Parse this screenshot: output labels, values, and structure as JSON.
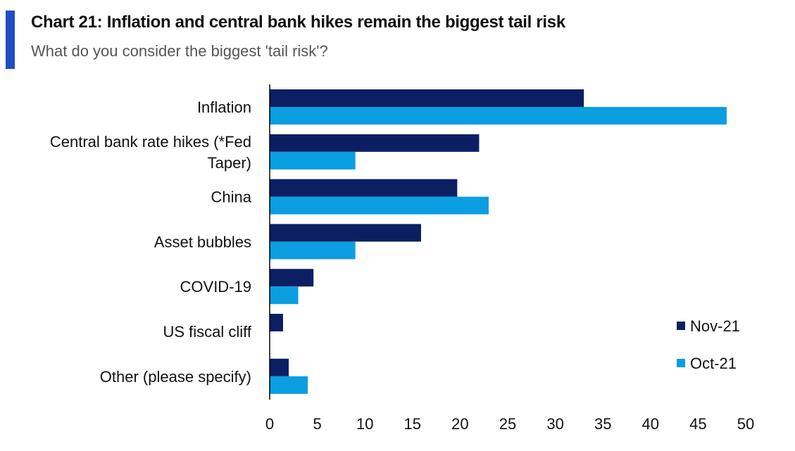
{
  "header": {
    "title": "Chart 21: Inflation and central bank hikes remain the biggest tail risk",
    "subtitle": "What do you consider the biggest 'tail risk'?"
  },
  "colors": {
    "accent": "#1f4fc4",
    "nov": "#0c1f63",
    "oct": "#0b9ee0",
    "axis": "#000000"
  },
  "chart_data": {
    "type": "bar",
    "orientation": "horizontal",
    "title": "Chart 21: Inflation and central bank hikes remain the biggest tail risk",
    "subtitle": "What do you consider the biggest 'tail risk'?",
    "categories": [
      [
        "Inflation"
      ],
      [
        "Central bank rate hikes (*Fed",
        "Taper)"
      ],
      [
        "China"
      ],
      [
        "Asset bubbles"
      ],
      [
        "COVID-19"
      ],
      [
        "US fiscal cliff"
      ],
      [
        "Other (please specify)"
      ]
    ],
    "series": [
      {
        "name": "Nov-21",
        "color": "#0c1f63",
        "values": [
          33,
          22,
          19.7,
          15.9,
          4.6,
          1.4,
          2
        ]
      },
      {
        "name": "Oct-21",
        "color": "#0b9ee0",
        "values": [
          48,
          9,
          23,
          9,
          3,
          0,
          4
        ]
      }
    ],
    "xlim": [
      0,
      50
    ],
    "xticks": [
      "0",
      "5",
      "10",
      "15",
      "20",
      "25",
      "30",
      "35",
      "40",
      "45",
      "50"
    ],
    "xlabel": "",
    "ylabel": "",
    "legend": {
      "position": "bottom-right",
      "entries": [
        "Nov-21",
        "Oct-21"
      ]
    }
  }
}
